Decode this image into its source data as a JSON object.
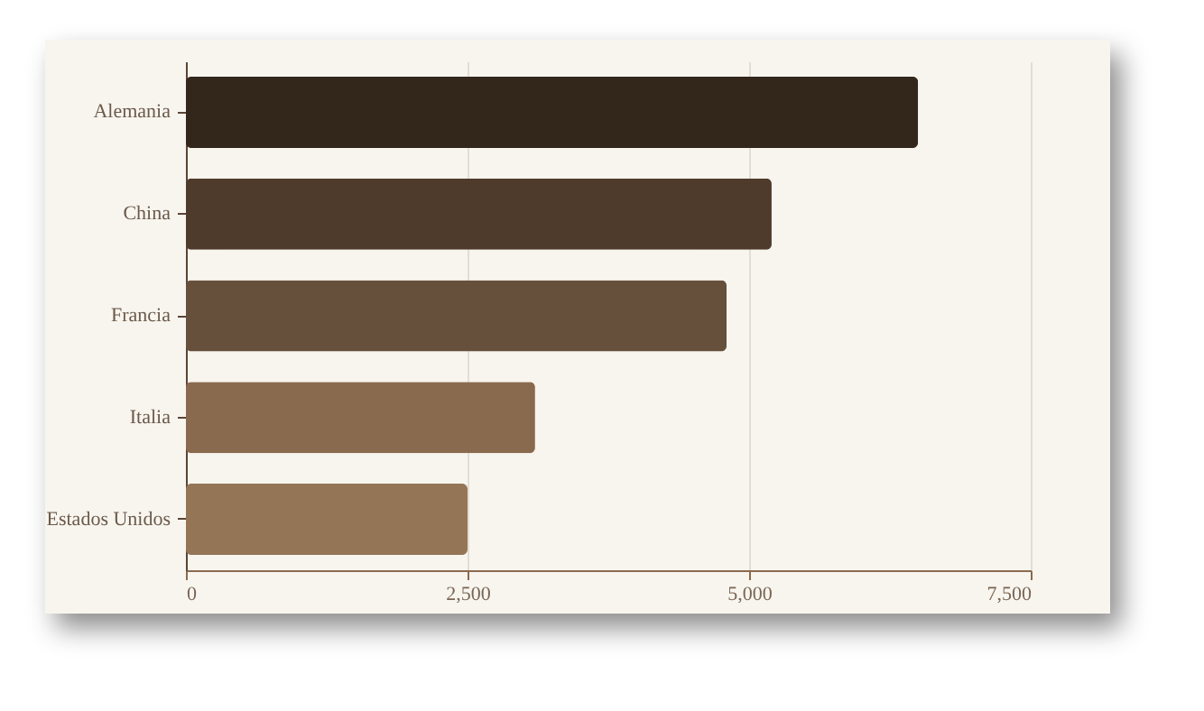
{
  "chart_data": {
    "type": "bar",
    "orientation": "horizontal",
    "categories": [
      "Alemania",
      "China",
      "Francia",
      "Italia",
      "Estados Unidos"
    ],
    "values": [
      6500,
      5200,
      4800,
      3100,
      2500
    ],
    "colors": [
      "#33261b",
      "#4f3b2c",
      "#66503c",
      "#8a6a4e",
      "#947556"
    ],
    "xlim": [
      0,
      7500
    ],
    "xticks": [
      {
        "value": 0,
        "label": "0"
      },
      {
        "value": 2500,
        "label": "2,500"
      },
      {
        "value": 5000,
        "label": "5,000"
      },
      {
        "value": 7500,
        "label": "7,500"
      }
    ],
    "grid": "x"
  }
}
